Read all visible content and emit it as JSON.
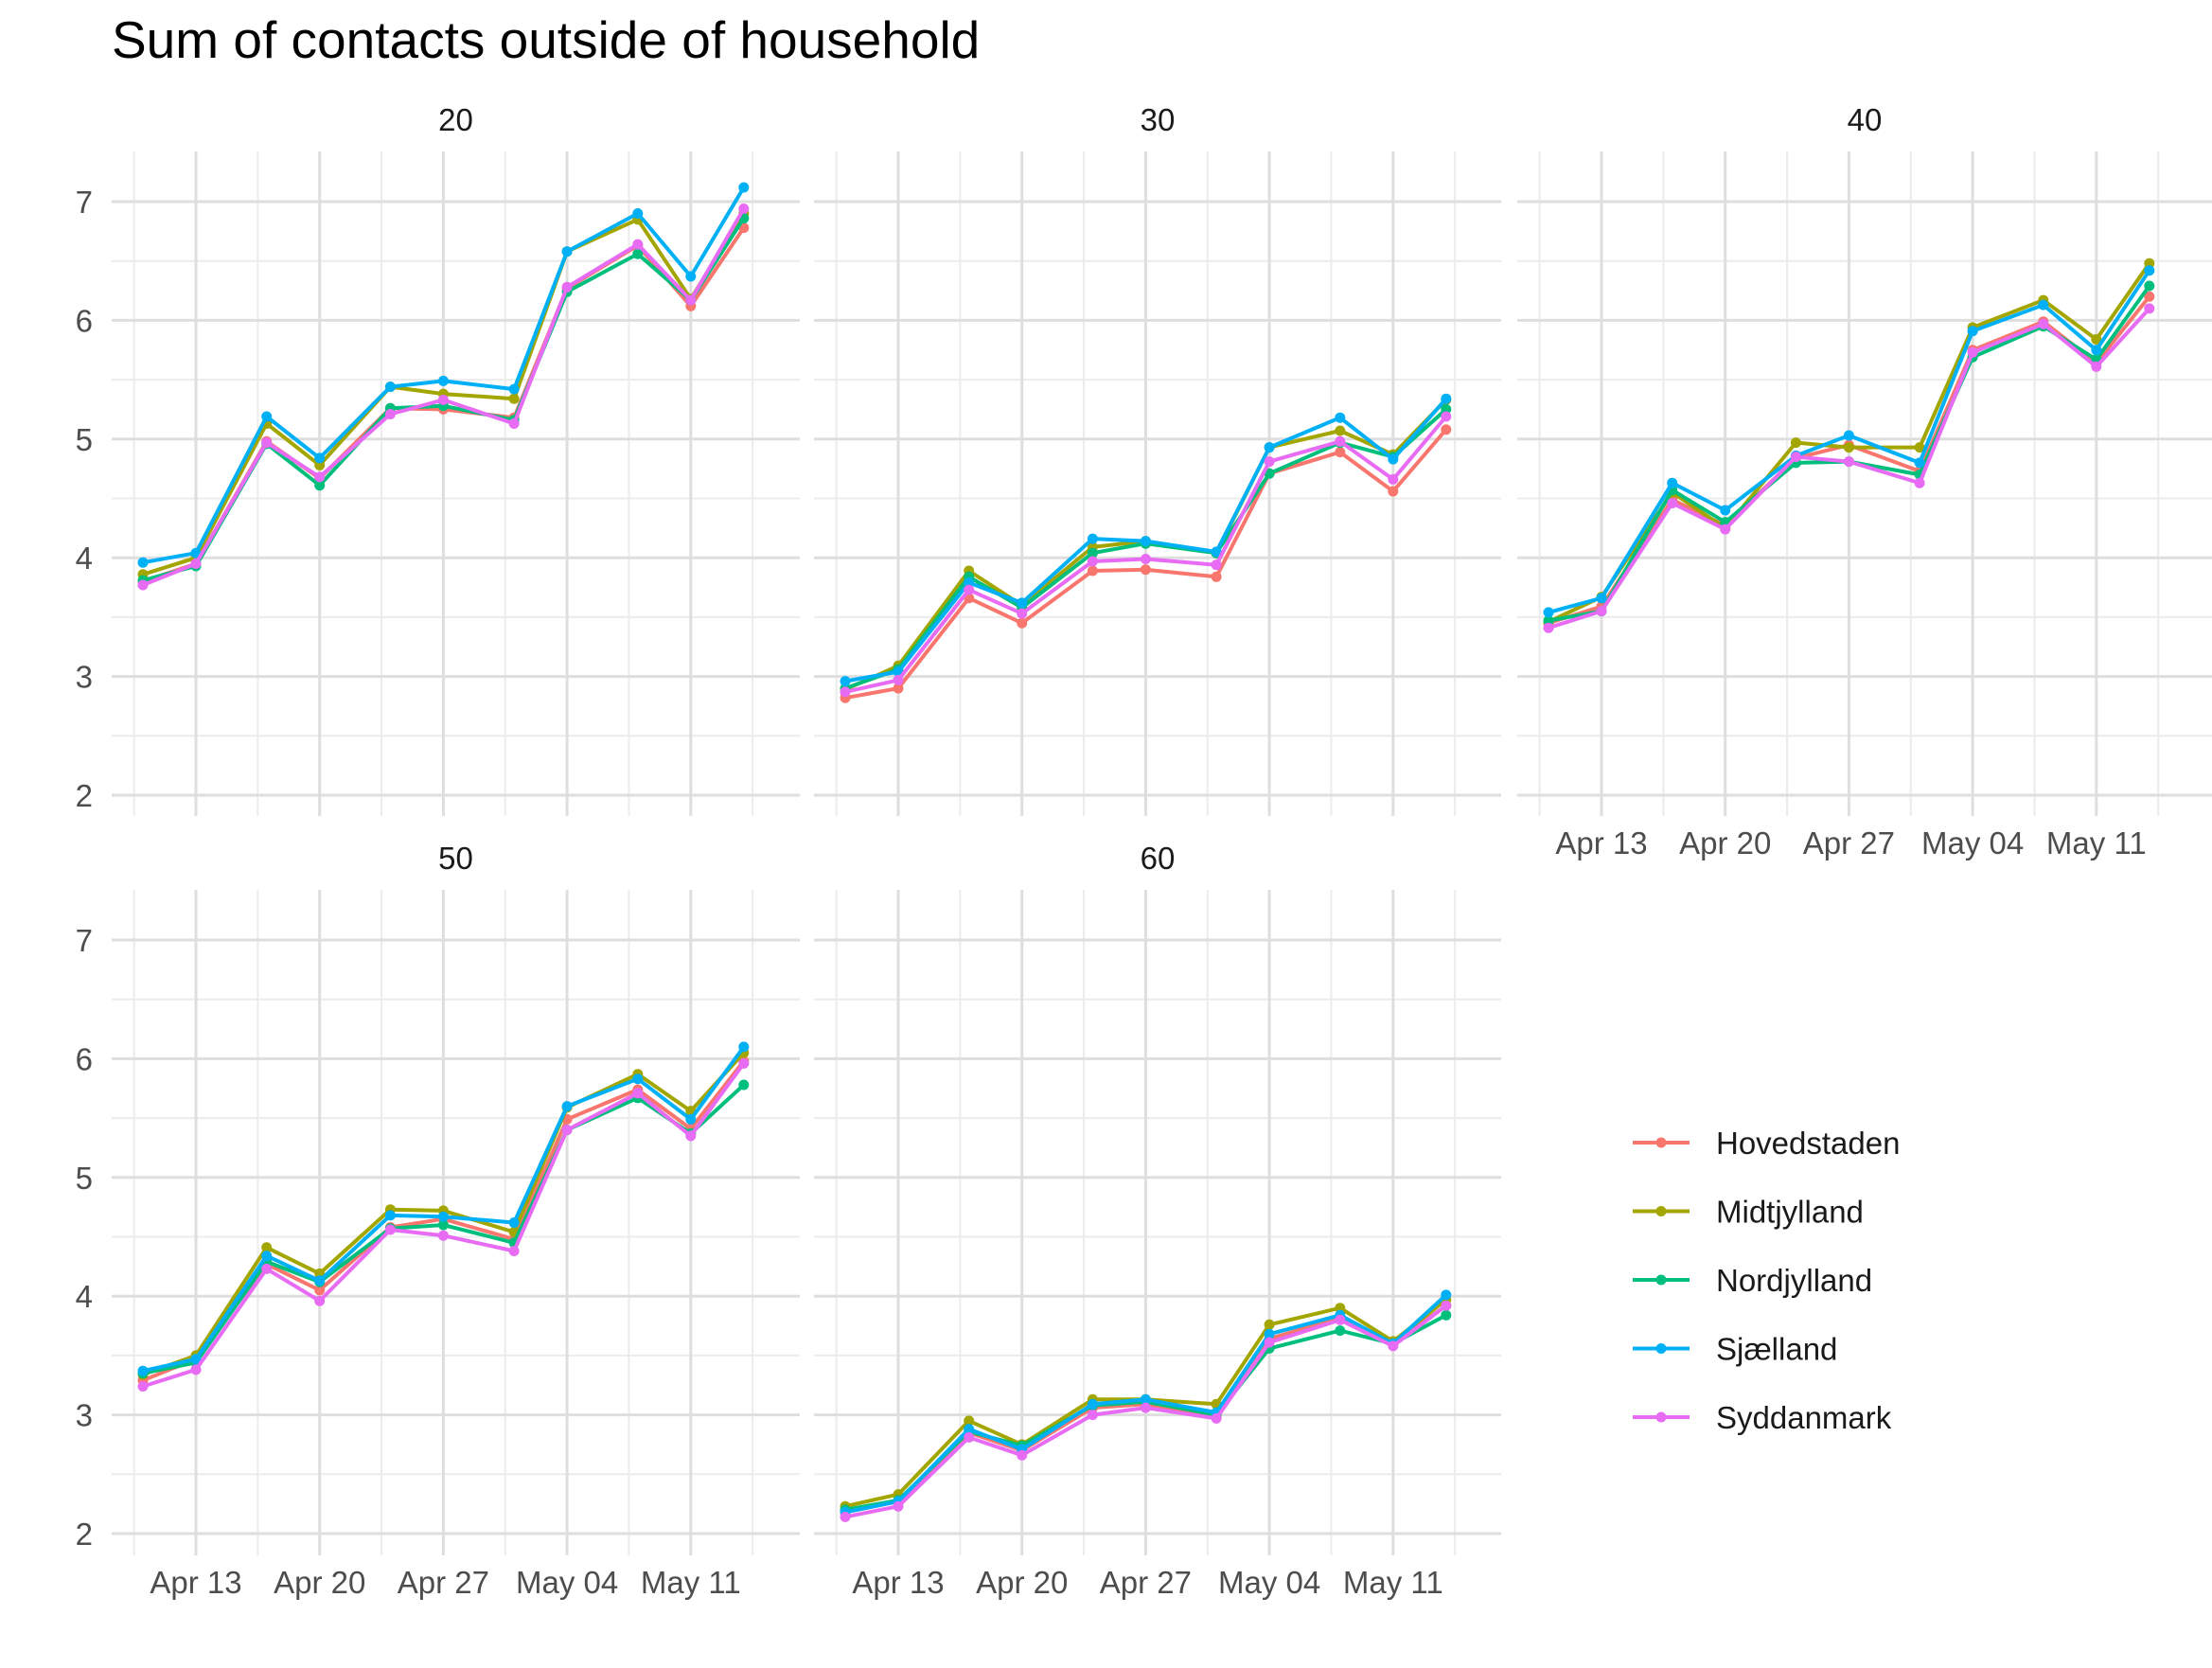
{
  "title": "Sum of contacts outside of household",
  "chart_data": {
    "type": "line",
    "title": "Sum of contacts outside of household",
    "xlabel": "",
    "ylabel": "",
    "ylim": [
      2,
      7
    ],
    "y_ticks": [
      "2",
      "3",
      "4",
      "5",
      "6",
      "7"
    ],
    "x_ticks": [
      {
        "date": "2020-04-13",
        "label": "Apr 13"
      },
      {
        "date": "2020-04-20",
        "label": "Apr 20"
      },
      {
        "date": "2020-04-27",
        "label": "Apr 27"
      },
      {
        "date": "2020-05-04",
        "label": "May 04"
      },
      {
        "date": "2020-05-11",
        "label": "May 11"
      }
    ],
    "x": [
      "2020-04-10",
      "2020-04-13",
      "2020-04-17",
      "2020-04-20",
      "2020-04-24",
      "2020-04-27",
      "2020-05-01",
      "2020-05-04",
      "2020-05-08",
      "2020-05-11",
      "2020-05-14"
    ],
    "grid": true,
    "legend_position": "right",
    "legend": [
      "Hovedstaden",
      "Midtjylland",
      "Nordjylland",
      "Sjælland",
      "Syddanmark"
    ],
    "colors": {
      "Hovedstaden": "#F8766D",
      "Midtjylland": "#A3A500",
      "Nordjylland": "#00BF7D",
      "Sjælland": "#00B0F6",
      "Syddanmark": "#E76BF3"
    },
    "facets": [
      {
        "label": "20",
        "series": [
          {
            "name": "Hovedstaden",
            "values": [
              3.8,
              3.95,
              4.98,
              4.67,
              5.26,
              5.25,
              5.18,
              6.27,
              6.63,
              6.12,
              6.78
            ]
          },
          {
            "name": "Midtjylland",
            "values": [
              3.86,
              4.0,
              5.13,
              4.78,
              5.44,
              5.38,
              5.34,
              6.58,
              6.85,
              6.18,
              6.9
            ]
          },
          {
            "name": "Nordjylland",
            "values": [
              3.81,
              3.93,
              4.96,
              4.61,
              5.26,
              5.28,
              5.16,
              6.24,
              6.56,
              6.17,
              6.86
            ]
          },
          {
            "name": "Sjælland",
            "values": [
              3.96,
              4.04,
              5.19,
              4.84,
              5.44,
              5.49,
              5.42,
              6.58,
              6.9,
              6.37,
              7.12
            ]
          },
          {
            "name": "Syddanmark",
            "values": [
              3.77,
              3.95,
              4.97,
              4.68,
              5.21,
              5.33,
              5.13,
              6.28,
              6.64,
              6.17,
              6.94
            ]
          }
        ]
      },
      {
        "label": "30",
        "series": [
          {
            "name": "Hovedstaden",
            "values": [
              2.82,
              2.9,
              3.66,
              3.45,
              3.89,
              3.9,
              3.84,
              4.71,
              4.89,
              4.56,
              5.08
            ]
          },
          {
            "name": "Midtjylland",
            "values": [
              2.89,
              3.09,
              3.89,
              3.6,
              4.09,
              4.14,
              4.04,
              4.93,
              5.07,
              4.87,
              5.33
            ]
          },
          {
            "name": "Nordjylland",
            "values": [
              2.9,
              3.06,
              3.84,
              3.58,
              4.04,
              4.12,
              4.04,
              4.71,
              4.97,
              4.85,
              5.25
            ]
          },
          {
            "name": "Sjælland",
            "values": [
              2.96,
              3.04,
              3.79,
              3.62,
              4.16,
              4.14,
              4.05,
              4.93,
              5.18,
              4.83,
              5.34
            ]
          },
          {
            "name": "Syddanmark",
            "values": [
              2.87,
              2.97,
              3.73,
              3.53,
              3.97,
              3.99,
              3.94,
              4.81,
              4.98,
              4.66,
              5.19
            ]
          }
        ]
      },
      {
        "label": "40",
        "series": [
          {
            "name": "Hovedstaden",
            "values": [
              3.45,
              3.59,
              4.49,
              4.27,
              4.84,
              4.95,
              4.73,
              5.75,
              5.99,
              5.64,
              6.2
            ]
          },
          {
            "name": "Midtjylland",
            "values": [
              3.46,
              3.67,
              4.55,
              4.25,
              4.97,
              4.93,
              4.93,
              5.94,
              6.17,
              5.84,
              6.48
            ]
          },
          {
            "name": "Nordjylland",
            "values": [
              3.47,
              3.55,
              4.57,
              4.3,
              4.8,
              4.81,
              4.7,
              5.69,
              5.95,
              5.67,
              6.29
            ]
          },
          {
            "name": "Sjælland",
            "values": [
              3.54,
              3.66,
              4.63,
              4.4,
              4.86,
              5.03,
              4.8,
              5.91,
              6.13,
              5.75,
              6.42
            ]
          },
          {
            "name": "Syddanmark",
            "values": [
              3.41,
              3.55,
              4.46,
              4.24,
              4.85,
              4.81,
              4.63,
              5.73,
              5.97,
              5.61,
              6.1
            ]
          }
        ]
      },
      {
        "label": "50",
        "series": [
          {
            "name": "Hovedstaden",
            "values": [
              3.29,
              3.47,
              4.27,
              4.05,
              4.58,
              4.65,
              4.48,
              5.49,
              5.74,
              5.41,
              5.98
            ]
          },
          {
            "name": "Midtjylland",
            "values": [
              3.34,
              3.5,
              4.41,
              4.19,
              4.73,
              4.72,
              4.54,
              5.59,
              5.87,
              5.56,
              6.05
            ]
          },
          {
            "name": "Nordjylland",
            "values": [
              3.35,
              3.44,
              4.29,
              4.12,
              4.57,
              4.6,
              4.45,
              5.4,
              5.67,
              5.37,
              5.78
            ]
          },
          {
            "name": "Sjælland",
            "values": [
              3.37,
              3.47,
              4.34,
              4.13,
              4.68,
              4.67,
              4.62,
              5.6,
              5.83,
              5.49,
              6.1
            ]
          },
          {
            "name": "Syddanmark",
            "values": [
              3.24,
              3.38,
              4.23,
              3.96,
              4.56,
              4.51,
              4.38,
              5.4,
              5.71,
              5.35,
              5.96
            ]
          }
        ]
      },
      {
        "label": "60",
        "series": [
          {
            "name": "Hovedstaden",
            "values": [
              2.18,
              2.27,
              2.85,
              2.7,
              3.06,
              3.09,
              2.98,
              3.64,
              3.82,
              3.6,
              3.92
            ]
          },
          {
            "name": "Midtjylland",
            "values": [
              2.23,
              2.33,
              2.95,
              2.75,
              3.13,
              3.13,
              3.09,
              3.76,
              3.9,
              3.62,
              3.97
            ]
          },
          {
            "name": "Nordjylland",
            "values": [
              2.2,
              2.28,
              2.86,
              2.74,
              3.08,
              3.11,
              3.0,
              3.56,
              3.71,
              3.6,
              3.84
            ]
          },
          {
            "name": "Sjælland",
            "values": [
              2.18,
              2.27,
              2.88,
              2.71,
              3.09,
              3.13,
              3.02,
              3.68,
              3.84,
              3.6,
              4.01
            ]
          },
          {
            "name": "Syddanmark",
            "values": [
              2.14,
              2.23,
              2.81,
              2.66,
              3.0,
              3.06,
              2.97,
              3.61,
              3.8,
              3.58,
              3.92
            ]
          }
        ]
      }
    ]
  }
}
